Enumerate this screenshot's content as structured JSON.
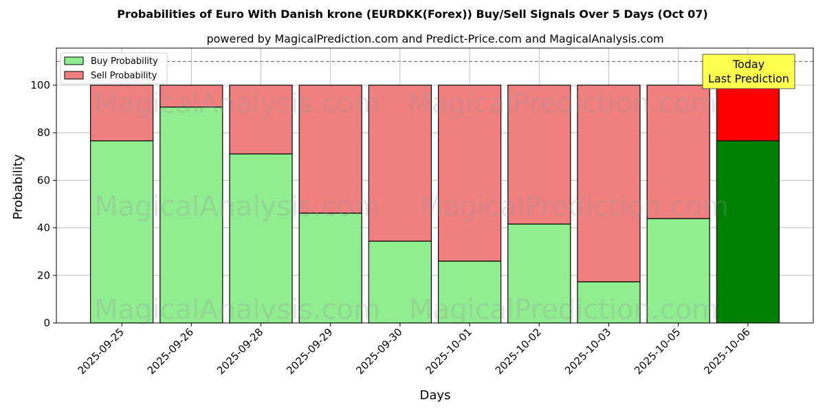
{
  "chart_data": {
    "type": "bar",
    "stacked": true,
    "title": "Probabilities of Euro With Danish krone (EURDKK(Forex)) Buy/Sell Signals Over 5 Days (Oct 07)",
    "subtitle": "powered by MagicalPrediction.com and Predict-Price.com and MagicalAnalysis.com",
    "xlabel": "Days",
    "ylabel": "Probability",
    "ylim": [
      0,
      115.6
    ],
    "yticks": [
      0,
      20,
      40,
      60,
      80,
      100
    ],
    "grid": true,
    "legend_placement": "top-left",
    "categories": [
      "2025-09-25",
      "2025-09-26",
      "2025-09-28",
      "2025-09-29",
      "2025-09-30",
      "2025-10-01",
      "2025-10-02",
      "2025-10-03",
      "2025-10-05",
      "2025-10-06"
    ],
    "series": [
      {
        "name": "Buy Probability",
        "values": [
          76.6,
          90.8,
          71.1,
          46.2,
          34.4,
          26.0,
          41.6,
          17.3,
          43.9,
          76.6
        ],
        "color": "#90ee90",
        "highlight_color": "#008000"
      },
      {
        "name": "Sell Probability",
        "values": [
          23.4,
          9.2,
          28.9,
          53.8,
          65.6,
          74.0,
          58.4,
          82.7,
          56.1,
          23.4
        ],
        "color": "#f08080",
        "highlight_color": "#ff0000"
      }
    ],
    "reference_line": 110,
    "annotation": {
      "line1": "Today",
      "line2": "Last Prediction",
      "color": "#ffff4d"
    },
    "watermarks": [
      "MagicalAnalysis.com",
      "MagicalPrediction.com"
    ]
  }
}
